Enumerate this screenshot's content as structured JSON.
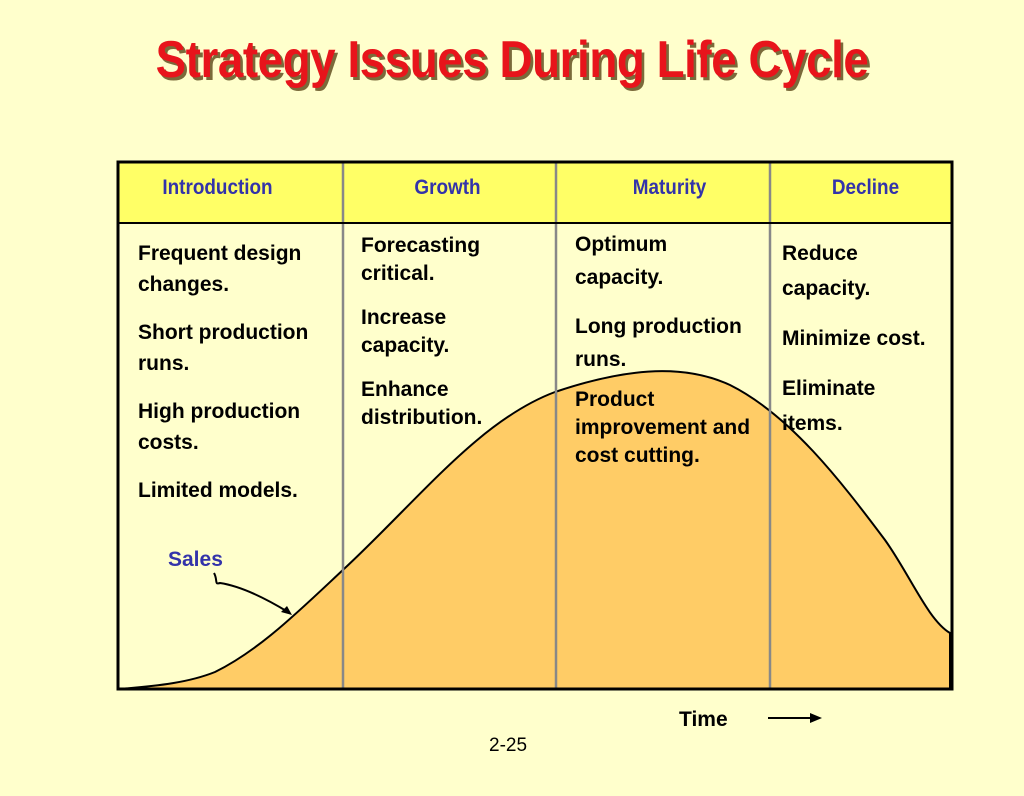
{
  "title": "Strategy Issues During Life Cycle",
  "stages": [
    {
      "name": "Introduction",
      "items": [
        "Frequent design changes.",
        "Short production runs.",
        "High production costs.",
        "Limited models."
      ]
    },
    {
      "name": "Growth",
      "items": [
        "Forecasting critical.",
        "Increase capacity.",
        "Enhance distribution."
      ]
    },
    {
      "name": "Maturity",
      "items": [
        "Optimum capacity.",
        "Long production runs.",
        "Product improvement and cost cutting."
      ]
    },
    {
      "name": "Decline",
      "items": [
        "Reduce capacity.",
        "Minimize cost.",
        "Eliminate items."
      ]
    }
  ],
  "curve_label": "Sales",
  "x_axis_label": "Time",
  "page_number": "2-25",
  "colors": {
    "background": "#FFFFCC",
    "title": "#E8141B",
    "header_band": "#FFFF66",
    "stage_label": "#3333AA",
    "curve_fill": "#FFCC66",
    "divider": "#888888"
  }
}
